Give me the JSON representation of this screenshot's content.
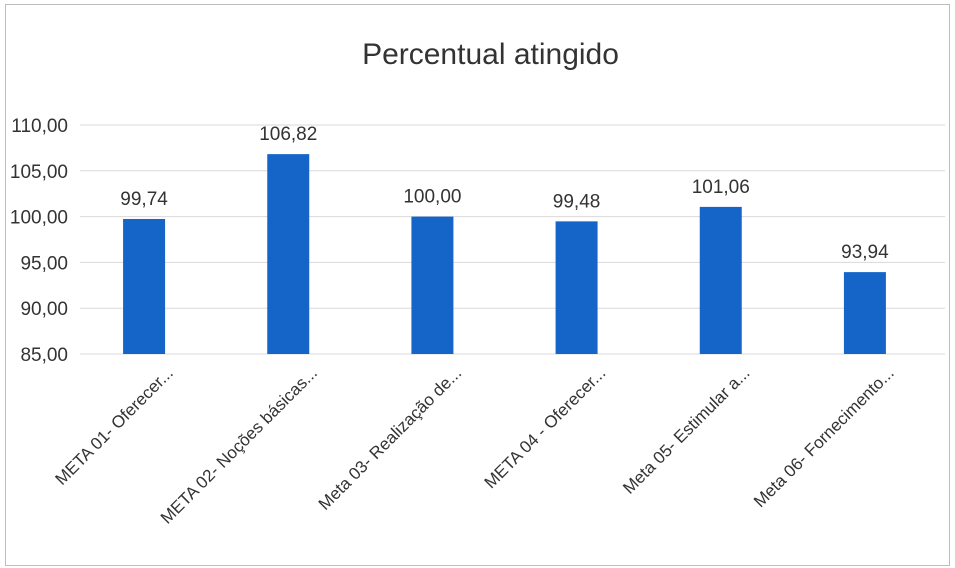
{
  "chart_data": {
    "type": "bar",
    "title": "Percentual atingido",
    "xlabel": "",
    "ylabel": "",
    "categories": [
      "META 01- Oferecer...",
      "META 02- Noções básicas...",
      "Meta 03- Realização de...",
      "META 04 -  Oferecer...",
      "Meta  05- Estimular a...",
      "Meta  06- Fornecimento..."
    ],
    "values": [
      99.74,
      106.82,
      100.0,
      99.48,
      101.06,
      93.94
    ],
    "value_labels": [
      "99,74",
      "106,82",
      "100,00",
      "99,48",
      "101,06",
      "93,94"
    ],
    "ylim": [
      85,
      110
    ],
    "yticks": [
      85,
      90,
      95,
      100,
      105,
      110
    ],
    "ytick_labels": [
      "85,00",
      "90,00",
      "95,00",
      "100,00",
      "105,00",
      "110,00"
    ],
    "grid": true,
    "bar_color": "#1565c8"
  }
}
